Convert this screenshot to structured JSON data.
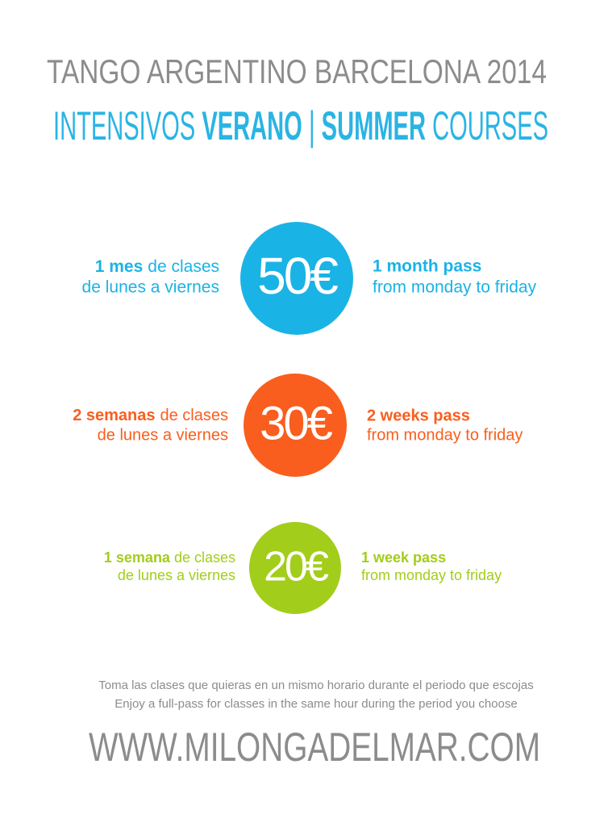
{
  "header": {
    "title": "TANGO ARGENTINO BARCELONA 2014",
    "subtitle": [
      "INTENSIVOS",
      "VERANO",
      "|",
      "SUMMER",
      "COURSES"
    ]
  },
  "offers": [
    {
      "left_bold": "1 mes",
      "left_rest": "de clases",
      "left_line2": "de lunes a viernes",
      "price": "50€",
      "right_line1": "1 month pass",
      "right_line2": "from monday to friday"
    },
    {
      "left_bold": "2 semanas",
      "left_rest": "de clases",
      "left_line2": "de lunes a viernes",
      "price": "30€",
      "right_line1": "2 weeks pass",
      "right_line2": "from monday to friday"
    },
    {
      "left_bold": "1 semana",
      "left_rest": "de clases",
      "left_line2": "de lunes a viernes",
      "price": "20€",
      "right_line1": "1 week pass",
      "right_line2": "from monday to friday"
    }
  ],
  "footer": {
    "note_es": "Toma las clases que quieras en un mismo horario durante el periodo que escojas",
    "note_en": "Enjoy a full-pass for classes in the same hour during the period you choose",
    "url": "WWW.MILONGADELMAR.COM"
  }
}
